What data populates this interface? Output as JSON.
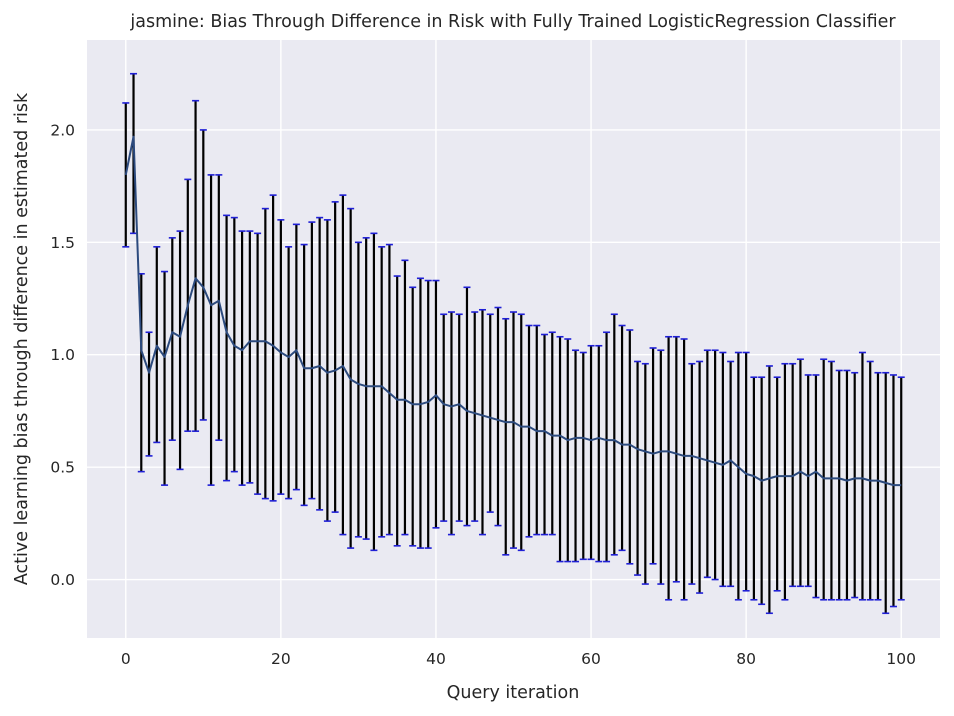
{
  "chart_data": {
    "type": "line",
    "title": "jasmine: Bias Through Difference in Risk with Fully Trained LogisticRegression Classifier",
    "xlabel": "Query iteration",
    "ylabel": "Active learning bias through difference in estimated risk",
    "xlim": [
      -5,
      105
    ],
    "ylim": [
      -0.26,
      2.4
    ],
    "xticks": [
      0,
      20,
      40,
      60,
      80,
      100
    ],
    "yticks": [
      0.0,
      0.5,
      1.0,
      1.5,
      2.0
    ],
    "xtick_labels": [
      "0",
      "20",
      "40",
      "60",
      "80",
      "100"
    ],
    "ytick_labels": [
      "0.0",
      "0.5",
      "1.0",
      "1.5",
      "2.0"
    ],
    "grid": true,
    "colors": {
      "background": "#eaeaf2",
      "grid": "#ffffff",
      "line": "#2c4a7e",
      "errorbar": "#000000",
      "cap": "#1f1fd6"
    },
    "series": [
      {
        "x": [
          0,
          1,
          2,
          3,
          4,
          5,
          6,
          7,
          8,
          9,
          10,
          11,
          12,
          13,
          14,
          15,
          16,
          17,
          18,
          19,
          20,
          21,
          22,
          23,
          24,
          25,
          26,
          27,
          28,
          29,
          30,
          31,
          32,
          33,
          34,
          35,
          36,
          37,
          38,
          39,
          40,
          41,
          42,
          43,
          44,
          45,
          46,
          47,
          48,
          49,
          50,
          51,
          52,
          53,
          54,
          55,
          56,
          57,
          58,
          59,
          60,
          61,
          62,
          63,
          64,
          65,
          66,
          67,
          68,
          69,
          70,
          71,
          72,
          73,
          74,
          75,
          76,
          77,
          78,
          79,
          80,
          81,
          82,
          83,
          84,
          85,
          86,
          87,
          88,
          89,
          90,
          91,
          92,
          93,
          94,
          95,
          96,
          97,
          98,
          99,
          100
        ],
        "y": [
          1.8,
          1.97,
          1.02,
          0.92,
          1.04,
          0.99,
          1.1,
          1.08,
          1.22,
          1.34,
          1.3,
          1.22,
          1.24,
          1.1,
          1.04,
          1.02,
          1.06,
          1.06,
          1.06,
          1.04,
          1.01,
          0.99,
          1.02,
          0.94,
          0.94,
          0.95,
          0.92,
          0.93,
          0.95,
          0.89,
          0.87,
          0.86,
          0.86,
          0.86,
          0.83,
          0.8,
          0.8,
          0.78,
          0.78,
          0.79,
          0.82,
          0.78,
          0.77,
          0.78,
          0.75,
          0.74,
          0.73,
          0.72,
          0.71,
          0.7,
          0.7,
          0.68,
          0.68,
          0.66,
          0.66,
          0.64,
          0.64,
          0.62,
          0.63,
          0.63,
          0.62,
          0.63,
          0.62,
          0.62,
          0.6,
          0.6,
          0.58,
          0.57,
          0.56,
          0.57,
          0.57,
          0.56,
          0.55,
          0.55,
          0.54,
          0.53,
          0.52,
          0.51,
          0.53,
          0.5,
          0.47,
          0.46,
          0.44,
          0.45,
          0.46,
          0.46,
          0.46,
          0.48,
          0.46,
          0.48,
          0.45,
          0.45,
          0.45,
          0.44,
          0.45,
          0.45,
          0.44,
          0.44,
          0.43,
          0.42,
          0.42
        ],
        "lower": [
          1.48,
          1.54,
          0.48,
          0.55,
          0.61,
          0.42,
          0.62,
          0.49,
          0.66,
          0.66,
          0.71,
          0.42,
          0.62,
          0.44,
          0.48,
          0.42,
          0.43,
          0.38,
          0.36,
          0.35,
          0.38,
          0.36,
          0.4,
          0.33,
          0.36,
          0.31,
          0.26,
          0.3,
          0.2,
          0.14,
          0.19,
          0.18,
          0.13,
          0.19,
          0.2,
          0.15,
          0.2,
          0.15,
          0.14,
          0.14,
          0.23,
          0.26,
          0.2,
          0.26,
          0.24,
          0.26,
          0.2,
          0.3,
          0.24,
          0.11,
          0.14,
          0.13,
          0.19,
          0.2,
          0.2,
          0.2,
          0.08,
          0.08,
          0.08,
          0.09,
          0.09,
          0.08,
          0.08,
          0.11,
          0.13,
          0.07,
          0.02,
          -0.02,
          0.07,
          -0.02,
          -0.09,
          -0.01,
          -0.09,
          -0.02,
          -0.06,
          0.01,
          0.0,
          -0.03,
          -0.03,
          -0.09,
          -0.05,
          -0.09,
          -0.11,
          -0.15,
          -0.05,
          -0.09,
          -0.03,
          -0.03,
          -0.03,
          -0.08,
          -0.09,
          -0.09,
          -0.09,
          -0.09,
          -0.08,
          -0.09,
          -0.09,
          -0.09,
          -0.15,
          -0.12,
          -0.09
        ],
        "upper": [
          2.12,
          2.25,
          1.36,
          1.1,
          1.48,
          1.37,
          1.52,
          1.55,
          1.78,
          2.13,
          2.0,
          1.8,
          1.8,
          1.62,
          1.61,
          1.55,
          1.55,
          1.54,
          1.65,
          1.71,
          1.6,
          1.48,
          1.58,
          1.49,
          1.59,
          1.61,
          1.6,
          1.68,
          1.71,
          1.65,
          1.5,
          1.52,
          1.54,
          1.48,
          1.49,
          1.35,
          1.42,
          1.3,
          1.34,
          1.33,
          1.33,
          1.18,
          1.19,
          1.18,
          1.3,
          1.19,
          1.2,
          1.18,
          1.21,
          1.16,
          1.19,
          1.18,
          1.13,
          1.13,
          1.09,
          1.1,
          1.08,
          1.07,
          1.02,
          1.01,
          1.04,
          1.04,
          1.1,
          1.18,
          1.13,
          1.11,
          0.97,
          0.96,
          1.03,
          1.02,
          1.08,
          1.08,
          1.07,
          0.96,
          0.97,
          1.02,
          1.02,
          1.01,
          0.97,
          1.01,
          1.01,
          0.9,
          0.9,
          0.95,
          0.9,
          0.96,
          0.96,
          0.98,
          0.91,
          0.91,
          0.98,
          0.97,
          0.93,
          0.93,
          0.92,
          1.01,
          0.97,
          0.92,
          0.92,
          0.91,
          0.9
        ]
      }
    ]
  }
}
